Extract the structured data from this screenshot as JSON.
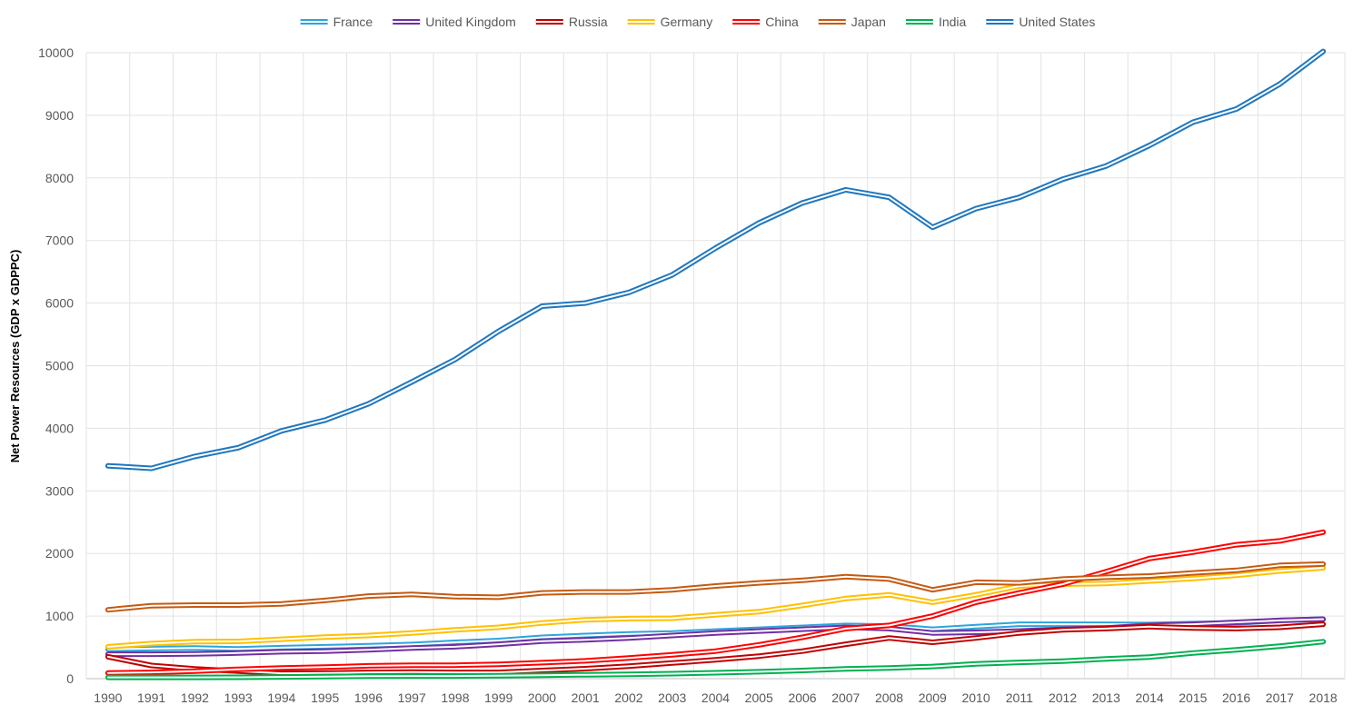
{
  "chart_data": {
    "type": "line",
    "title": "",
    "xlabel": "",
    "ylabel": "Net Power Resources (GDP x GDPPC)",
    "ylim": [
      0,
      10000
    ],
    "y_ticks": [
      0,
      1000,
      2000,
      3000,
      4000,
      5000,
      6000,
      7000,
      8000,
      9000,
      10000
    ],
    "grid": true,
    "legend_position": "top",
    "line_style": "double",
    "x": [
      1990,
      1991,
      1992,
      1993,
      1994,
      1995,
      1996,
      1997,
      1998,
      1999,
      2000,
      2001,
      2002,
      2003,
      2004,
      2005,
      2006,
      2007,
      2008,
      2009,
      2010,
      2011,
      2012,
      2013,
      2014,
      2015,
      2016,
      2017,
      2018
    ],
    "series": [
      {
        "name": "France",
        "color": "#2EA4DC",
        "values": [
          470,
          480,
          490,
          475,
          495,
          510,
          525,
          545,
          580,
          610,
          660,
          690,
          715,
          730,
          760,
          790,
          820,
          850,
          840,
          790,
          830,
          870,
          870,
          870,
          865,
          880,
          890,
          930,
          950
        ]
      },
      {
        "name": "United Kingdom",
        "color": "#7030A0",
        "values": [
          390,
          390,
          395,
          410,
          430,
          440,
          460,
          490,
          510,
          550,
          600,
          620,
          650,
          690,
          730,
          760,
          790,
          820,
          800,
          730,
          740,
          760,
          790,
          810,
          850,
          870,
          900,
          930,
          950
        ]
      },
      {
        "name": "Russia",
        "color": "#C00000",
        "values": [
          350,
          210,
          155,
          120,
          85,
          90,
          100,
          105,
          100,
          100,
          130,
          160,
          200,
          250,
          300,
          360,
          440,
          550,
          650,
          580,
          650,
          730,
          780,
          800,
          830,
          810,
          800,
          820,
          870
        ]
      },
      {
        "name": "Germany",
        "color": "#FFC000",
        "values": [
          510,
          560,
          590,
          595,
          630,
          665,
          690,
          730,
          780,
          820,
          890,
          940,
          960,
          965,
          1020,
          1070,
          1170,
          1280,
          1340,
          1220,
          1340,
          1480,
          1510,
          1520,
          1560,
          1600,
          1650,
          1720,
          1770
        ]
      },
      {
        "name": "China",
        "color": "#FF0000",
        "values": [
          90,
          100,
          120,
          150,
          170,
          185,
          205,
          215,
          215,
          230,
          255,
          285,
          330,
          380,
          440,
          540,
          660,
          800,
          850,
          1000,
          1220,
          1370,
          1510,
          1710,
          1920,
          2020,
          2140,
          2200,
          2340
        ]
      },
      {
        "name": "Japan",
        "color": "#C55A11",
        "values": [
          1100,
          1165,
          1175,
          1175,
          1195,
          1250,
          1320,
          1345,
          1310,
          1300,
          1370,
          1385,
          1385,
          1420,
          1480,
          1530,
          1570,
          1630,
          1590,
          1420,
          1540,
          1530,
          1590,
          1620,
          1640,
          1690,
          1730,
          1810,
          1830
        ]
      },
      {
        "name": "India",
        "color": "#00B050",
        "values": [
          20,
          20,
          20,
          22,
          28,
          32,
          40,
          42,
          42,
          48,
          55,
          62,
          70,
          80,
          95,
          110,
          130,
          155,
          170,
          195,
          235,
          260,
          280,
          315,
          345,
          410,
          460,
          520,
          590
        ]
      },
      {
        "name": "United States",
        "color": "#1F77BF",
        "values": [
          3400,
          3360,
          3550,
          3690,
          3960,
          4130,
          4390,
          4740,
          5100,
          5550,
          5950,
          6000,
          6170,
          6450,
          6880,
          7280,
          7600,
          7810,
          7690,
          7210,
          7510,
          7690,
          7980,
          8190,
          8520,
          8890,
          9100,
          9500,
          10020
        ]
      }
    ]
  }
}
